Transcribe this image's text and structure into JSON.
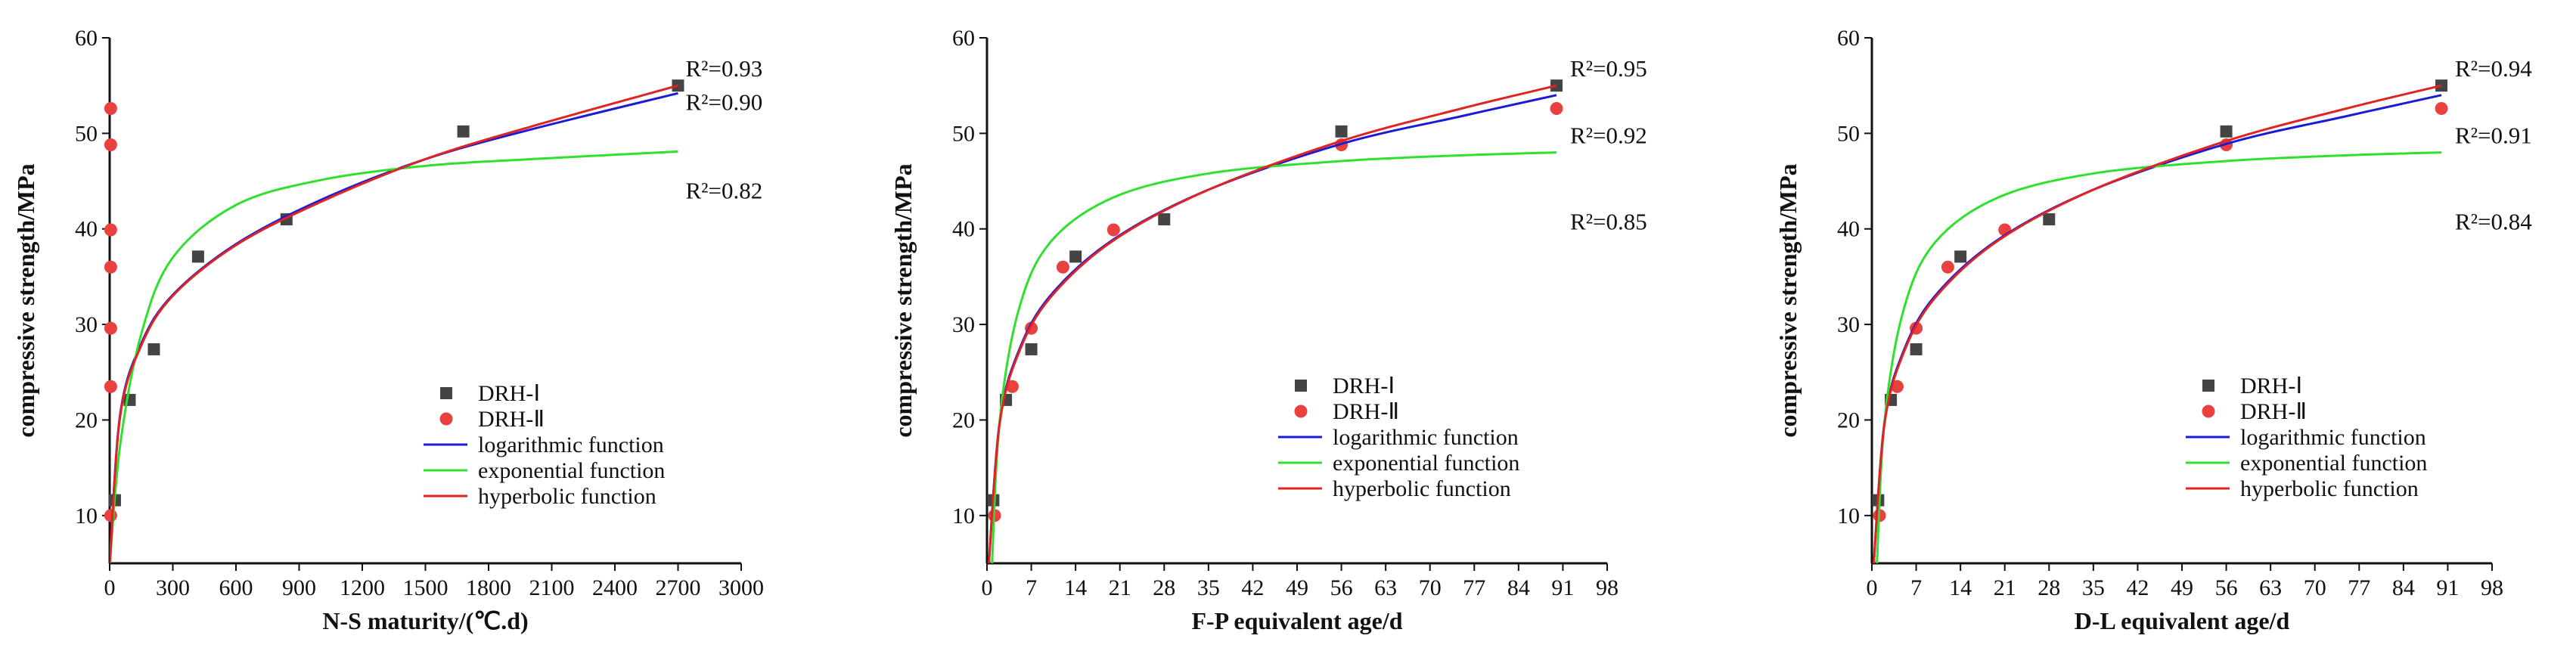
{
  "colors": {
    "drh1_marker": "#444444",
    "drh2_marker": "#e8413f",
    "logarithmic": "#1b1bd6",
    "exponential": "#2fe02f",
    "hyperbolic": "#e02424",
    "axis": "#111111"
  },
  "chart_data": [
    {
      "type": "scatter",
      "xlabel": "N-S maturity/(℃.d)",
      "ylabel": "compressive strength/MPa",
      "xlim": [
        0,
        3000
      ],
      "ylim": [
        5,
        60
      ],
      "xticks": [
        "0",
        "300",
        "600",
        "900",
        "1200",
        "1500",
        "1800",
        "2100",
        "2400",
        "2700",
        "3000"
      ],
      "yticks": [
        "10",
        "20",
        "30",
        "40",
        "50",
        "60"
      ],
      "series": [
        {
          "name": "DRH-Ⅰ",
          "kind": "points",
          "marker": "square",
          "x": [
            25,
            95,
            210,
            420,
            840,
            1680,
            2700
          ],
          "y": [
            11.6,
            22.1,
            27.4,
            37.1,
            41.0,
            50.2,
            55.0
          ]
        },
        {
          "name": "DRH-Ⅱ",
          "kind": "points",
          "marker": "circle",
          "x": [
            5,
            5,
            5,
            5,
            5,
            5,
            5
          ],
          "y": [
            10.0,
            23.5,
            29.6,
            36.0,
            39.9,
            48.8,
            52.6
          ]
        },
        {
          "name": "logarithmic function",
          "kind": "curve",
          "model": "log",
          "x": [
            1,
            50,
            150,
            300,
            600,
            1000,
            1500,
            2000,
            2700
          ],
          "y": [
            5.0,
            20.6,
            28.0,
            33.1,
            38.4,
            43.0,
            47.3,
            50.4,
            54.2
          ]
        },
        {
          "name": "exponential function",
          "kind": "curve",
          "model": "exp",
          "x": [
            1,
            50,
            150,
            300,
            600,
            1000,
            1500,
            2000,
            2700
          ],
          "y": [
            5.0,
            17.4,
            29.0,
            37.0,
            42.5,
            45.1,
            46.6,
            47.3,
            48.1
          ]
        },
        {
          "name": "hyperbolic function",
          "kind": "curve",
          "model": "hyp",
          "x": [
            1,
            50,
            150,
            300,
            600,
            1000,
            1500,
            2000,
            2700
          ],
          "y": [
            5.0,
            20.4,
            27.8,
            33.0,
            38.3,
            42.8,
            47.3,
            50.7,
            55.0
          ]
        }
      ],
      "r2_labels": [
        {
          "text": "R²=0.93",
          "x": 2700,
          "y": 55.0
        },
        {
          "text": "R²=0.90",
          "x": 2700,
          "y": 54.2
        },
        {
          "text": "R²=0.82",
          "x": 2700,
          "y": 48.1
        }
      ],
      "legend_position": "bottom-right"
    },
    {
      "type": "scatter",
      "xlabel": "F-P equivalent age/d",
      "ylabel": "compressive strength/MPa",
      "xlim": [
        0,
        98
      ],
      "ylim": [
        5,
        60
      ],
      "xticks": [
        "0",
        "7",
        "14",
        "21",
        "28",
        "35",
        "42",
        "49",
        "56",
        "63",
        "70",
        "77",
        "84",
        "91",
        "98"
      ],
      "yticks": [
        "10",
        "20",
        "30",
        "40",
        "50",
        "60"
      ],
      "series": [
        {
          "name": "DRH-Ⅰ",
          "kind": "points",
          "marker": "square",
          "x": [
            1,
            3,
            7,
            14,
            28,
            56,
            90
          ],
          "y": [
            11.6,
            22.1,
            27.4,
            37.1,
            41.0,
            50.2,
            55.0
          ]
        },
        {
          "name": "DRH-Ⅱ",
          "kind": "points",
          "marker": "circle",
          "x": [
            1.2,
            4,
            7,
            12,
            20,
            56,
            90
          ],
          "y": [
            10.0,
            23.5,
            29.6,
            36.0,
            39.9,
            48.8,
            52.6
          ]
        },
        {
          "name": "logarithmic function",
          "kind": "curve",
          "model": "log",
          "x": [
            0.3,
            2,
            5,
            10,
            20,
            35,
            56,
            75,
            90
          ],
          "y": [
            5.0,
            19.8,
            27.2,
            33.0,
            38.9,
            44.1,
            48.9,
            51.8,
            54.0
          ]
        },
        {
          "name": "exponential function",
          "kind": "curve",
          "model": "exp",
          "x": [
            0.8,
            2,
            5,
            10,
            20,
            35,
            56,
            75,
            90
          ],
          "y": [
            5.0,
            19.9,
            31.5,
            38.6,
            43.3,
            45.8,
            47.1,
            47.7,
            48.0
          ]
        },
        {
          "name": "hyperbolic function",
          "kind": "curve",
          "model": "hyp",
          "x": [
            0.3,
            2,
            5,
            10,
            20,
            35,
            56,
            75,
            90
          ],
          "y": [
            5.0,
            19.6,
            27.0,
            32.8,
            38.8,
            44.1,
            49.2,
            52.6,
            55.0
          ]
        }
      ],
      "r2_labels": [
        {
          "text": "R²=0.95",
          "x": 90,
          "y": 55.0
        },
        {
          "text": "R²=0.92",
          "x": 90,
          "y": 52.6
        },
        {
          "text": "R²=0.85",
          "x": 90,
          "y": 48.0
        }
      ],
      "legend_position": "bottom-right"
    },
    {
      "type": "scatter",
      "xlabel": "D-L equivalent age/d",
      "ylabel": "compressive strength/MPa",
      "xlim": [
        0,
        98
      ],
      "ylim": [
        5,
        60
      ],
      "xticks": [
        "0",
        "7",
        "14",
        "21",
        "28",
        "35",
        "42",
        "49",
        "56",
        "63",
        "70",
        "77",
        "84",
        "91",
        "98"
      ],
      "yticks": [
        "10",
        "20",
        "30",
        "40",
        "50",
        "60"
      ],
      "series": [
        {
          "name": "DRH-Ⅰ",
          "kind": "points",
          "marker": "square",
          "x": [
            1,
            3,
            7,
            14,
            28,
            56,
            90
          ],
          "y": [
            11.6,
            22.1,
            27.4,
            37.1,
            41.0,
            50.2,
            55.0
          ]
        },
        {
          "name": "DRH-Ⅱ",
          "kind": "points",
          "marker": "circle",
          "x": [
            1.2,
            4,
            7,
            12,
            21,
            56,
            90
          ],
          "y": [
            10.0,
            23.5,
            29.6,
            36.0,
            39.9,
            48.8,
            52.6
          ]
        },
        {
          "name": "logarithmic function",
          "kind": "curve",
          "model": "log",
          "x": [
            0.3,
            2,
            5,
            10,
            20,
            35,
            56,
            75,
            90
          ],
          "y": [
            5.0,
            19.8,
            27.2,
            33.0,
            38.9,
            44.1,
            48.9,
            51.8,
            54.0
          ]
        },
        {
          "name": "exponential function",
          "kind": "curve",
          "model": "exp",
          "x": [
            0.8,
            2,
            5,
            10,
            20,
            35,
            56,
            75,
            90
          ],
          "y": [
            5.0,
            19.9,
            31.5,
            38.6,
            43.3,
            45.8,
            47.1,
            47.7,
            48.0
          ]
        },
        {
          "name": "hyperbolic function",
          "kind": "curve",
          "model": "hyp",
          "x": [
            0.3,
            2,
            5,
            10,
            20,
            35,
            56,
            75,
            90
          ],
          "y": [
            5.0,
            19.6,
            27.0,
            32.8,
            38.8,
            44.1,
            49.2,
            52.6,
            55.0
          ]
        }
      ],
      "r2_labels": [
        {
          "text": "R²=0.94",
          "x": 90,
          "y": 55.0
        },
        {
          "text": "R²=0.91",
          "x": 90,
          "y": 52.6
        },
        {
          "text": "R²=0.84",
          "x": 90,
          "y": 48.0
        }
      ],
      "legend_position": "bottom-right"
    }
  ]
}
